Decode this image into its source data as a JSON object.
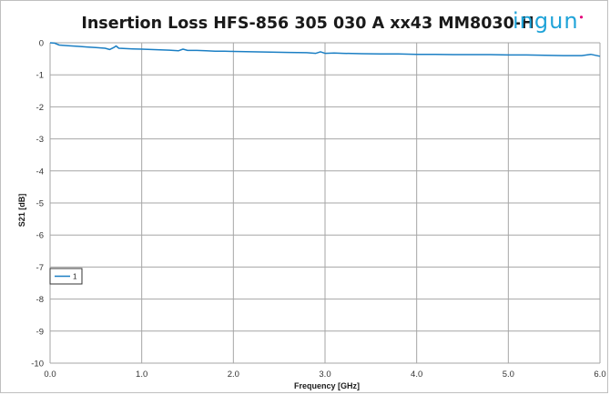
{
  "chart_data": {
    "type": "line",
    "title": "Insertion Loss HFS-856 305 030 A xx43 MM8030-H",
    "xlabel": "Frequency [GHz]",
    "ylabel": "S21 [dB]",
    "xlim": [
      0.0,
      6.0
    ],
    "ylim": [
      -10,
      0
    ],
    "x_ticks": [
      "0.0",
      "1.0",
      "2.0",
      "3.0",
      "4.0",
      "5.0",
      "6.0"
    ],
    "y_ticks": [
      "0",
      "-1",
      "-2",
      "-3",
      "-4",
      "-5",
      "-6",
      "-7",
      "-8",
      "-9",
      "-10"
    ],
    "grid": true,
    "legend_position": "left, lower-middle",
    "series": [
      {
        "name": "1",
        "color": "#1b7fc4",
        "x": [
          0.0,
          0.05,
          0.1,
          0.2,
          0.3,
          0.4,
          0.5,
          0.6,
          0.65,
          0.7,
          0.72,
          0.75,
          0.8,
          0.9,
          1.0,
          1.1,
          1.2,
          1.3,
          1.4,
          1.45,
          1.5,
          1.6,
          1.7,
          1.8,
          1.9,
          2.0,
          2.2,
          2.4,
          2.6,
          2.8,
          2.9,
          2.95,
          3.0,
          3.1,
          3.2,
          3.4,
          3.6,
          3.8,
          4.0,
          4.2,
          4.4,
          4.6,
          4.8,
          5.0,
          5.2,
          5.4,
          5.6,
          5.8,
          5.9,
          6.0
        ],
        "y": [
          0.0,
          -0.01,
          -0.07,
          -0.09,
          -0.11,
          -0.13,
          -0.15,
          -0.17,
          -0.21,
          -0.14,
          -0.1,
          -0.17,
          -0.18,
          -0.19,
          -0.2,
          -0.21,
          -0.22,
          -0.23,
          -0.25,
          -0.2,
          -0.24,
          -0.24,
          -0.25,
          -0.26,
          -0.26,
          -0.27,
          -0.28,
          -0.29,
          -0.3,
          -0.31,
          -0.33,
          -0.28,
          -0.33,
          -0.32,
          -0.33,
          -0.34,
          -0.35,
          -0.35,
          -0.36,
          -0.36,
          -0.37,
          -0.37,
          -0.37,
          -0.38,
          -0.38,
          -0.39,
          -0.4,
          -0.4,
          -0.36,
          -0.42
        ]
      }
    ]
  },
  "logo": {
    "text": "ingun",
    "color": "#1fa3d8",
    "accent_color": "#e3007a"
  }
}
